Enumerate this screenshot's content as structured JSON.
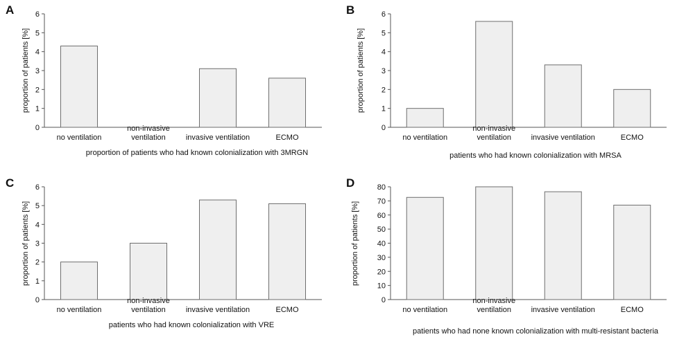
{
  "chart_data": [
    {
      "panel": "A",
      "type": "bar",
      "categories": [
        [
          "no ventilation"
        ],
        [
          "non-invasive",
          "ventilation"
        ],
        [
          "invasive ventilation"
        ],
        [
          "ECMO"
        ]
      ],
      "values": [
        4.3,
        0,
        3.1,
        2.6
      ],
      "ylim": [
        0,
        6
      ],
      "yticks": [
        "0",
        "1",
        "2",
        "3",
        "4",
        "5",
        "6"
      ],
      "ylabel": "proportion of patients [%]",
      "xlabel": "proportion of patients who had known colonialization with 3MRGN",
      "grid": false
    },
    {
      "panel": "B",
      "type": "bar",
      "categories": [
        [
          "no ventilation"
        ],
        [
          "non-invasive",
          "ventilation"
        ],
        [
          "invasive ventilation"
        ],
        [
          "ECMO"
        ]
      ],
      "values": [
        1.0,
        5.6,
        3.3,
        2.0
      ],
      "ylim": [
        0,
        6
      ],
      "yticks": [
        "0",
        "1",
        "2",
        "3",
        "4",
        "5",
        "6"
      ],
      "ylabel": "proportion of patients [%]",
      "xlabel": "patients who had known colonialization with MRSA",
      "grid": false
    },
    {
      "panel": "C",
      "type": "bar",
      "categories": [
        [
          "no ventilation"
        ],
        [
          "non-invasive",
          "ventilation"
        ],
        [
          "invasive ventilation"
        ],
        [
          "ECMO"
        ]
      ],
      "values": [
        2.0,
        3.0,
        5.3,
        5.1
      ],
      "ylim": [
        0,
        6
      ],
      "yticks": [
        "0",
        "1",
        "2",
        "3",
        "4",
        "5",
        "6"
      ],
      "ylabel": "proportion of patients [%]",
      "xlabel": "patients who had known colonialization with VRE",
      "grid": false
    },
    {
      "panel": "D",
      "type": "bar",
      "categories": [
        [
          "no ventilation"
        ],
        [
          "non-invasive",
          "ventilation"
        ],
        [
          "invasive ventilation"
        ],
        [
          "ECMO"
        ]
      ],
      "values": [
        72.5,
        80,
        76.5,
        67
      ],
      "ylim": [
        0,
        80
      ],
      "yticks": [
        "0",
        "10",
        "20",
        "30",
        "40",
        "50",
        "60",
        "70",
        "80"
      ],
      "ylabel": "proportion of patients [%]",
      "xlabel": "patients who had none known colonialization with multi-resistant bacteria",
      "grid": false
    }
  ],
  "colors": {
    "bar_fill": "#efefef",
    "bar_stroke": "#6e6e6e",
    "axis": "#555555"
  }
}
